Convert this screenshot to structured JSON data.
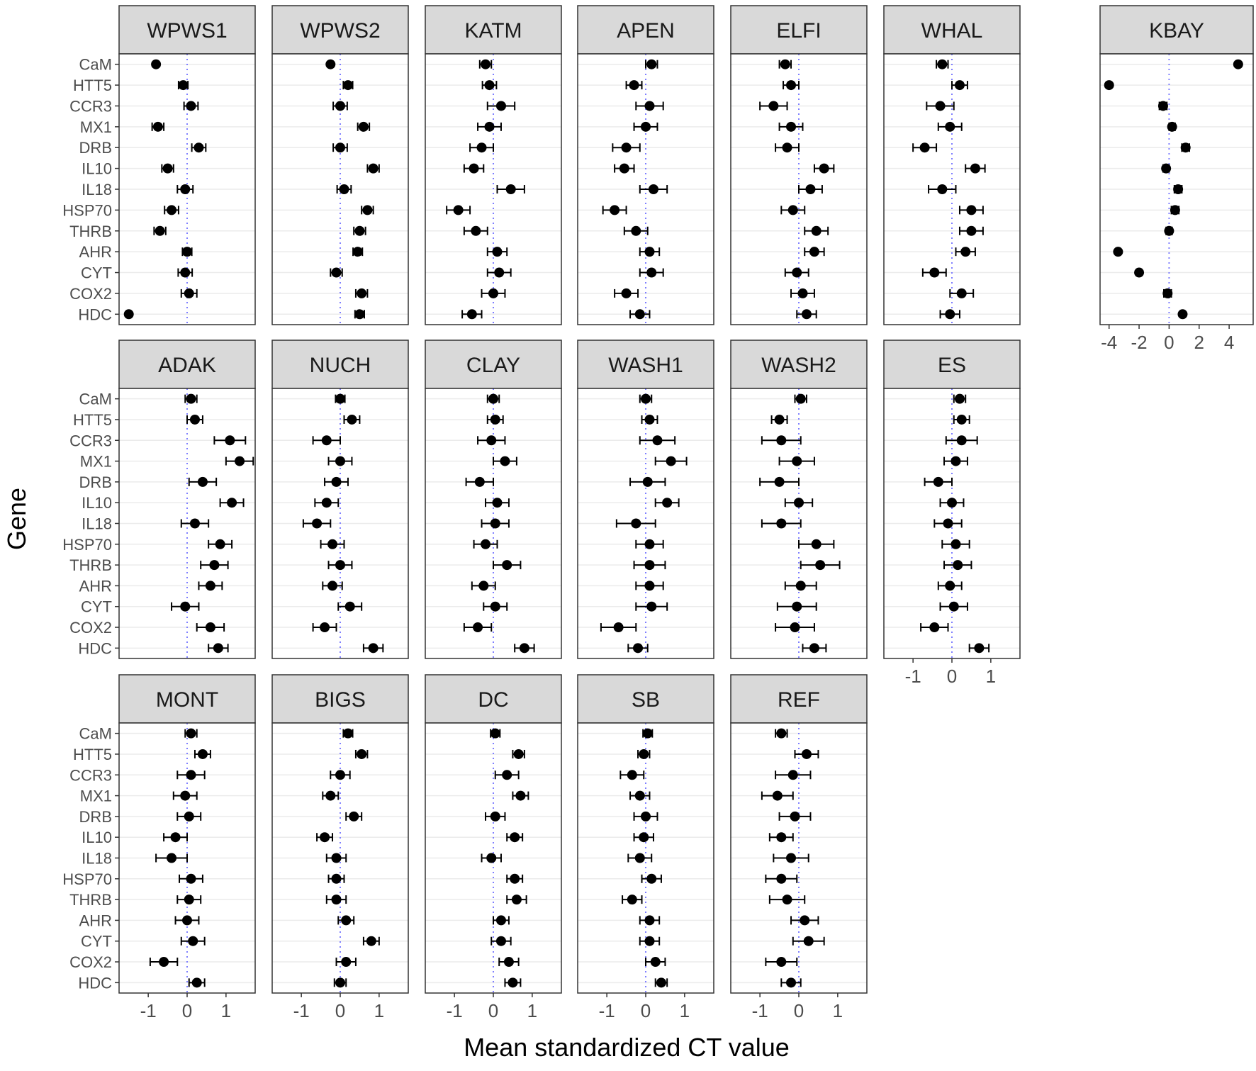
{
  "chart_data": {
    "type": "scatter",
    "xlabel": "Mean standardized CT value",
    "ylabel": "Gene",
    "genes": [
      "CaM",
      "HTT5",
      "CCR3",
      "MX1",
      "DRB",
      "IL10",
      "IL18",
      "HSP70",
      "THRB",
      "AHR",
      "CYT",
      "COX2",
      "HDC"
    ],
    "ticks": [
      -1,
      0,
      1
    ],
    "tick_labels": [
      "-1",
      "0",
      "1"
    ],
    "xlim": [
      -1.75,
      1.75
    ],
    "kbay_ticks": [
      -4,
      -2,
      0,
      2,
      4
    ],
    "kbay_tick_labels": [
      "-4",
      "-2",
      "0",
      "2",
      "4"
    ],
    "kbay_xlim": [
      -4.6,
      5.6
    ],
    "grid": true,
    "reference_line": {
      "x": 0,
      "style": "dotted",
      "color": "#7f7fff"
    },
    "colors": {
      "point": "#000000",
      "strip_bg": "#d9d9d9",
      "grid": "#ebebeb",
      "panel_border": "#333333"
    },
    "panels": [
      {
        "name": "WPWS1",
        "mean": [
          -0.8,
          -0.1,
          0.1,
          -0.75,
          0.3,
          -0.5,
          -0.05,
          -0.4,
          -0.7,
          0.0,
          -0.05,
          0.05,
          -1.5
        ],
        "err": [
          0.0,
          0.12,
          0.18,
          0.15,
          0.18,
          0.15,
          0.2,
          0.18,
          0.15,
          0.12,
          0.18,
          0.2,
          0.0
        ]
      },
      {
        "name": "WPWS2",
        "mean": [
          -0.25,
          0.2,
          0.0,
          0.6,
          0.0,
          0.85,
          0.1,
          0.7,
          0.5,
          0.45,
          -0.1,
          0.55,
          0.5
        ],
        "err": [
          0.0,
          0.12,
          0.18,
          0.15,
          0.18,
          0.15,
          0.18,
          0.15,
          0.15,
          0.12,
          0.15,
          0.15,
          0.12
        ]
      },
      {
        "name": "KATM",
        "mean": [
          -0.2,
          -0.1,
          0.2,
          -0.1,
          -0.3,
          -0.5,
          0.45,
          -0.9,
          -0.45,
          0.1,
          0.15,
          0.0,
          -0.55
        ],
        "err": [
          0.15,
          0.18,
          0.35,
          0.3,
          0.3,
          0.25,
          0.35,
          0.3,
          0.3,
          0.25,
          0.3,
          0.3,
          0.25
        ]
      },
      {
        "name": "APEN",
        "mean": [
          0.15,
          -0.3,
          0.1,
          0.0,
          -0.5,
          -0.55,
          0.2,
          -0.8,
          -0.25,
          0.1,
          0.15,
          -0.5,
          -0.15
        ],
        "err": [
          0.15,
          0.2,
          0.35,
          0.3,
          0.35,
          0.25,
          0.35,
          0.3,
          0.3,
          0.25,
          0.3,
          0.3,
          0.25
        ]
      },
      {
        "name": "ELFI",
        "mean": [
          -0.35,
          -0.2,
          -0.65,
          -0.2,
          -0.3,
          0.65,
          0.3,
          -0.15,
          0.45,
          0.4,
          -0.05,
          0.1,
          0.2
        ],
        "err": [
          0.15,
          0.2,
          0.35,
          0.3,
          0.3,
          0.25,
          0.3,
          0.3,
          0.3,
          0.25,
          0.3,
          0.3,
          0.25
        ]
      },
      {
        "name": "WHAL",
        "mean": [
          -0.25,
          0.2,
          -0.3,
          -0.05,
          -0.7,
          0.6,
          -0.25,
          0.5,
          0.5,
          0.35,
          -0.45,
          0.25,
          -0.05
        ],
        "err": [
          0.15,
          0.2,
          0.35,
          0.3,
          0.3,
          0.25,
          0.35,
          0.3,
          0.3,
          0.25,
          0.3,
          0.3,
          0.25
        ]
      },
      {
        "name": "KBAY",
        "mean": [
          4.6,
          -4.0,
          -0.4,
          0.2,
          1.1,
          -0.2,
          0.6,
          0.4,
          0.0,
          -3.4,
          -2.0,
          -0.1,
          0.9
        ],
        "err": [
          0.0,
          0.0,
          0.25,
          0.2,
          0.25,
          0.2,
          0.25,
          0.25,
          0.2,
          0.0,
          0.0,
          0.25,
          0.0
        ]
      },
      {
        "name": "ADAK",
        "mean": [
          0.1,
          0.2,
          1.1,
          1.35,
          0.4,
          1.15,
          0.2,
          0.85,
          0.7,
          0.6,
          -0.05,
          0.6,
          0.8
        ],
        "err": [
          0.15,
          0.2,
          0.4,
          0.35,
          0.35,
          0.3,
          0.35,
          0.3,
          0.35,
          0.3,
          0.35,
          0.35,
          0.25
        ]
      },
      {
        "name": "NUCH",
        "mean": [
          0.0,
          0.3,
          -0.35,
          0.0,
          -0.1,
          -0.35,
          -0.6,
          -0.2,
          0.0,
          -0.2,
          0.25,
          -0.4,
          0.85
        ],
        "err": [
          0.12,
          0.2,
          0.35,
          0.3,
          0.3,
          0.3,
          0.35,
          0.3,
          0.3,
          0.25,
          0.3,
          0.3,
          0.25
        ]
      },
      {
        "name": "CLAY",
        "mean": [
          0.0,
          0.05,
          -0.05,
          0.3,
          -0.35,
          0.1,
          0.05,
          -0.2,
          0.35,
          -0.25,
          0.05,
          -0.4,
          0.8
        ],
        "err": [
          0.15,
          0.2,
          0.35,
          0.3,
          0.35,
          0.3,
          0.35,
          0.3,
          0.35,
          0.3,
          0.3,
          0.35,
          0.25
        ]
      },
      {
        "name": "WASH1",
        "mean": [
          0.0,
          0.1,
          0.3,
          0.65,
          0.05,
          0.55,
          -0.25,
          0.1,
          0.1,
          0.1,
          0.15,
          -0.7,
          -0.2
        ],
        "err": [
          0.15,
          0.2,
          0.45,
          0.4,
          0.45,
          0.3,
          0.5,
          0.35,
          0.4,
          0.35,
          0.4,
          0.45,
          0.25
        ]
      },
      {
        "name": "WASH2",
        "mean": [
          0.05,
          -0.5,
          -0.45,
          -0.05,
          -0.5,
          0.0,
          -0.45,
          0.45,
          0.55,
          0.05,
          -0.05,
          -0.1,
          0.4
        ],
        "err": [
          0.15,
          0.2,
          0.5,
          0.45,
          0.5,
          0.35,
          0.5,
          0.45,
          0.5,
          0.4,
          0.5,
          0.5,
          0.3
        ]
      },
      {
        "name": "ES",
        "mean": [
          0.2,
          0.25,
          0.25,
          0.1,
          -0.35,
          0.0,
          -0.1,
          0.1,
          0.15,
          -0.05,
          0.05,
          -0.45,
          0.7
        ],
        "err": [
          0.15,
          0.2,
          0.4,
          0.3,
          0.35,
          0.3,
          0.35,
          0.35,
          0.35,
          0.3,
          0.35,
          0.35,
          0.25
        ]
      },
      {
        "name": "MONT",
        "mean": [
          0.1,
          0.4,
          0.1,
          -0.05,
          0.05,
          -0.3,
          -0.4,
          0.1,
          0.05,
          0.0,
          0.15,
          -0.6,
          0.25
        ],
        "err": [
          0.15,
          0.2,
          0.35,
          0.3,
          0.3,
          0.3,
          0.4,
          0.3,
          0.3,
          0.3,
          0.3,
          0.35,
          0.2
        ]
      },
      {
        "name": "BIGS",
        "mean": [
          0.2,
          0.55,
          0.0,
          -0.25,
          0.35,
          -0.4,
          -0.1,
          -0.1,
          -0.1,
          0.15,
          0.8,
          0.15,
          0.0
        ],
        "err": [
          0.12,
          0.15,
          0.25,
          0.2,
          0.2,
          0.2,
          0.25,
          0.2,
          0.25,
          0.2,
          0.2,
          0.25,
          0.15
        ]
      },
      {
        "name": "DC",
        "mean": [
          0.05,
          0.65,
          0.35,
          0.7,
          0.05,
          0.55,
          -0.05,
          0.55,
          0.6,
          0.2,
          0.2,
          0.4,
          0.5
        ],
        "err": [
          0.12,
          0.15,
          0.3,
          0.2,
          0.25,
          0.2,
          0.25,
          0.2,
          0.25,
          0.2,
          0.25,
          0.25,
          0.2
        ]
      },
      {
        "name": "SB",
        "mean": [
          0.05,
          -0.05,
          -0.35,
          -0.15,
          0.0,
          -0.05,
          -0.15,
          0.15,
          -0.35,
          0.1,
          0.1,
          0.25,
          0.4
        ],
        "err": [
          0.12,
          0.15,
          0.3,
          0.25,
          0.3,
          0.25,
          0.3,
          0.25,
          0.25,
          0.25,
          0.25,
          0.25,
          0.15
        ]
      },
      {
        "name": "REF",
        "mean": [
          -0.45,
          0.2,
          -0.15,
          -0.55,
          -0.1,
          -0.45,
          -0.2,
          -0.45,
          -0.3,
          0.15,
          0.25,
          -0.45,
          -0.2
        ],
        "err": [
          0.15,
          0.3,
          0.45,
          0.4,
          0.4,
          0.3,
          0.45,
          0.4,
          0.45,
          0.35,
          0.4,
          0.4,
          0.25
        ]
      }
    ]
  }
}
